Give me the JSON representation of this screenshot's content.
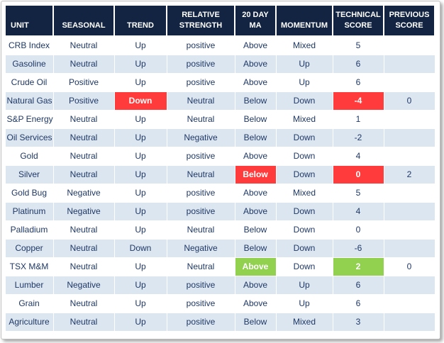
{
  "chart_data": {
    "type": "table",
    "title": "",
    "columns": [
      {
        "key": "unit",
        "label": "UNIT"
      },
      {
        "key": "seasonal",
        "label": "SEASONAL"
      },
      {
        "key": "trend",
        "label": "TREND"
      },
      {
        "key": "relative_strength",
        "label": "RELATIVE STRENGTH"
      },
      {
        "key": "ma20",
        "label": "20 DAY MA"
      },
      {
        "key": "momentum",
        "label": "MOMENTUM"
      },
      {
        "key": "technical_score",
        "label": "TECHNICAL SCORE"
      },
      {
        "key": "previous_score",
        "label": "PREVIOUS SCORE"
      }
    ],
    "rows": [
      {
        "cells": [
          "CRB Index",
          "Neutral",
          "Up",
          "positive",
          "Above",
          "Mixed",
          "5",
          ""
        ],
        "highlights": {}
      },
      {
        "cells": [
          "Gasoline",
          "Neutral",
          "Up",
          "positive",
          "Above",
          "Up",
          "6",
          ""
        ],
        "highlights": {}
      },
      {
        "cells": [
          "Crude Oil",
          "Positive",
          "Up",
          "positive",
          "Above",
          "Up",
          "6",
          ""
        ],
        "highlights": {}
      },
      {
        "cells": [
          "Natural Gas",
          "Positive",
          "Down",
          "Neutral",
          "Below",
          "Down",
          "-4",
          "0"
        ],
        "highlights": {
          "2": "negative",
          "6": "negative"
        }
      },
      {
        "cells": [
          "S&P Energy",
          "Neutral",
          "Up",
          "Neutral",
          "Below",
          "Mixed",
          "1",
          ""
        ],
        "highlights": {}
      },
      {
        "cells": [
          "Oil Services",
          "Neutral",
          "Up",
          "Negative",
          "Below",
          "Down",
          "-2",
          ""
        ],
        "highlights": {}
      },
      {
        "cells": [
          "Gold",
          "Neutral",
          "Up",
          "positive",
          "Above",
          "Down",
          "4",
          ""
        ],
        "highlights": {}
      },
      {
        "cells": [
          "Silver",
          "Neutral",
          "Up",
          "Neutral",
          "Below",
          "Down",
          "0",
          "2"
        ],
        "highlights": {
          "4": "negative",
          "6": "negative"
        }
      },
      {
        "cells": [
          "Gold Bug",
          "Negative",
          "Up",
          "positive",
          "Above",
          "Mixed",
          "5",
          ""
        ],
        "highlights": {}
      },
      {
        "cells": [
          "Platinum",
          "Negative",
          "Up",
          "positive",
          "Above",
          "Down",
          "4",
          ""
        ],
        "highlights": {}
      },
      {
        "cells": [
          "Palladium",
          "Neutral",
          "Up",
          "Neutral",
          "Below",
          "Down",
          "0",
          ""
        ],
        "highlights": {}
      },
      {
        "cells": [
          "Copper",
          "Neutral",
          "Down",
          "Negative",
          "Below",
          "Down",
          "-6",
          ""
        ],
        "highlights": {}
      },
      {
        "cells": [
          "TSX M&M",
          "Neutral",
          "Up",
          "Neutral",
          "Above",
          "Down",
          "2",
          "0"
        ],
        "highlights": {
          "4": "positive",
          "6": "positive"
        }
      },
      {
        "cells": [
          "Lumber",
          "Negative",
          "Up",
          "positive",
          "Above",
          "Up",
          "6",
          ""
        ],
        "highlights": {}
      },
      {
        "cells": [
          "Grain",
          "Neutral",
          "Up",
          "positive",
          "Above",
          "Up",
          "6",
          ""
        ],
        "highlights": {}
      },
      {
        "cells": [
          "Agriculture",
          "Neutral",
          "Up",
          "positive",
          "Below",
          "Mixed",
          "3",
          ""
        ],
        "highlights": {}
      }
    ]
  },
  "colors": {
    "header_bg": "#122441",
    "header_text": "#FFFFFF",
    "row_alt_bg": "#DCE6F1",
    "body_text": "#1F3864",
    "alert_negative_bg": "#FF3B3B",
    "alert_positive_bg": "#92D050"
  }
}
